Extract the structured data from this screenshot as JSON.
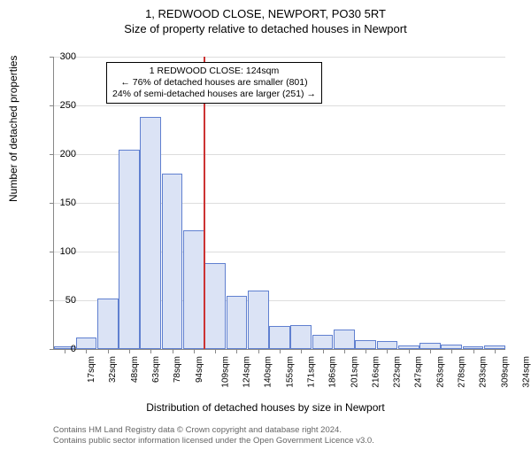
{
  "title_main": "1, REDWOOD CLOSE, NEWPORT, PO30 5RT",
  "title_sub": "Size of property relative to detached houses in Newport",
  "ylabel": "Number of detached properties",
  "xlabel": "Distribution of detached houses by size in Newport",
  "chart": {
    "type": "histogram",
    "ylim": [
      0,
      300
    ],
    "ytick_step": 50,
    "yticks": [
      0,
      50,
      100,
      150,
      200,
      250,
      300
    ],
    "bar_fill": "#dbe3f5",
    "bar_border": "#6080d0",
    "grid_color": "#dddddd",
    "axis_color": "#888888",
    "background": "#ffffff",
    "ref_line_color": "#cc3333",
    "ref_line_x": 124,
    "categories": [
      "17sqm",
      "32sqm",
      "48sqm",
      "63sqm",
      "78sqm",
      "94sqm",
      "109sqm",
      "124sqm",
      "140sqm",
      "155sqm",
      "171sqm",
      "186sqm",
      "201sqm",
      "216sqm",
      "232sqm",
      "247sqm",
      "263sqm",
      "278sqm",
      "293sqm",
      "309sqm",
      "324sqm"
    ],
    "values": [
      3,
      12,
      52,
      205,
      238,
      180,
      122,
      88,
      55,
      60,
      24,
      25,
      15,
      20,
      9,
      8,
      4,
      6,
      5,
      3,
      4
    ]
  },
  "annotation": {
    "line1": "1 REDWOOD CLOSE: 124sqm",
    "line2": "← 76% of detached houses are smaller (801)",
    "line3": "24% of semi-detached houses are larger (251) →"
  },
  "footnote": {
    "line1": "Contains HM Land Registry data © Crown copyright and database right 2024.",
    "line2": "Contains public sector information licensed under the Open Government Licence v3.0."
  }
}
